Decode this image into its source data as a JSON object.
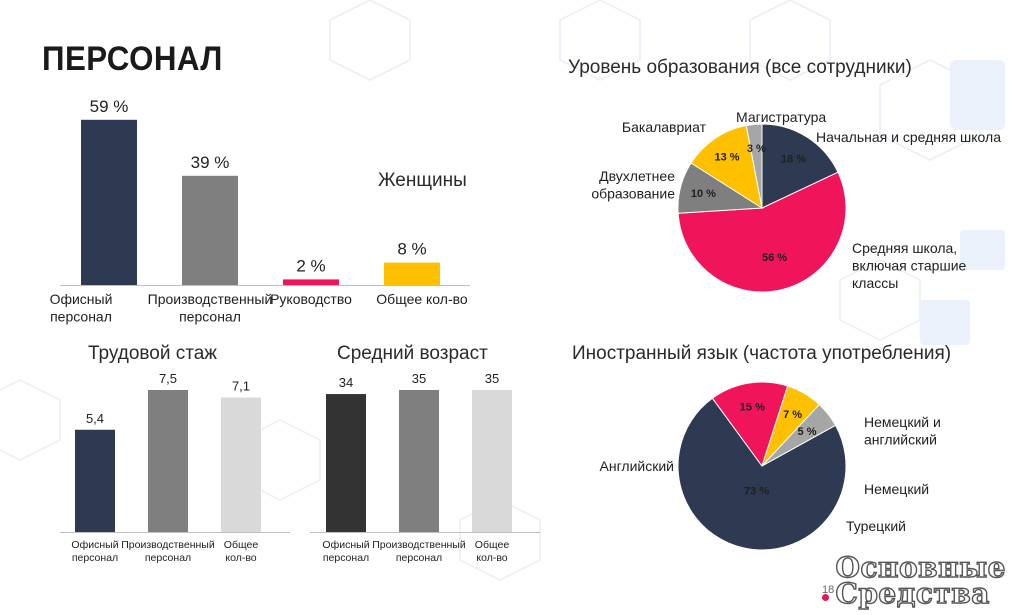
{
  "page": {
    "title": "ПЕРСОНАЛ",
    "page_number": "18",
    "logo_line1": "Основные",
    "logo_line2": "Средства"
  },
  "colors": {
    "navy": "#2e3a52",
    "gray": "#7f7f7f",
    "light": "#d9d9d9",
    "pink": "#f0145a",
    "yellow": "#ffc000",
    "dark": "#333333",
    "silver": "#a6a6a6"
  },
  "chart_data": [
    {
      "id": "personnel",
      "type": "bar",
      "title": "",
      "categories": [
        "Офисный персонал",
        "Производственный персонал",
        "Руководство",
        "Общее кол-во"
      ],
      "values": [
        59,
        39,
        2,
        8
      ],
      "value_labels": [
        "59 %",
        "39 %",
        "2 %",
        "8 %"
      ],
      "series_colors": [
        "#2e3a52",
        "#7f7f7f",
        "#f0145a",
        "#ffc000"
      ],
      "annotation": "Женщины",
      "ylim": [
        0,
        60
      ]
    },
    {
      "id": "education",
      "type": "pie",
      "title": "Уровень образования (все сотрудники)",
      "labels": [
        "Начальная и средняя школа",
        "Средняя школа, включая старшие классы",
        "Двухлетнее образование",
        "Бакалавриат",
        "Магистратура"
      ],
      "values": [
        18,
        56,
        10,
        13,
        3
      ],
      "value_labels": [
        "18 %",
        "56 %",
        "10 %",
        "13 %",
        "3 %"
      ],
      "colors": [
        "#2e3a52",
        "#f0145a",
        "#7f7f7f",
        "#ffc000",
        "#a6a6a6"
      ]
    },
    {
      "id": "experience",
      "type": "bar",
      "title": "Трудовой стаж",
      "categories": [
        "Офисный персонал",
        "Производственный персонал",
        "Общее кол-во"
      ],
      "values": [
        5.4,
        7.5,
        7.1
      ],
      "value_labels": [
        "5,4",
        "7,5",
        "7,1"
      ],
      "series_colors": [
        "#2e3a52",
        "#7f7f7f",
        "#d9d9d9"
      ],
      "ylim": [
        0,
        7.5
      ]
    },
    {
      "id": "age",
      "type": "bar",
      "title": "Средний возраст",
      "categories": [
        "Офисный персонал",
        "Производственный персонал",
        "Общее кол-во"
      ],
      "values": [
        34,
        35,
        35
      ],
      "value_labels": [
        "34",
        "35",
        "35"
      ],
      "series_colors": [
        "#333333",
        "#7f7f7f",
        "#d9d9d9"
      ],
      "ylim": [
        0,
        35
      ]
    },
    {
      "id": "language",
      "type": "pie",
      "title": "Иностранный язык (частота употребления)",
      "labels": [
        "Английский",
        "Немецкий и английский",
        "Немецкий",
        "Турецкий"
      ],
      "values": [
        73,
        15,
        7,
        5
      ],
      "value_labels": [
        "73 %",
        "15 %",
        "7 %",
        "5 %"
      ],
      "colors": [
        "#2e3a52",
        "#f0145a",
        "#ffc000",
        "#a6a6a6"
      ]
    }
  ]
}
